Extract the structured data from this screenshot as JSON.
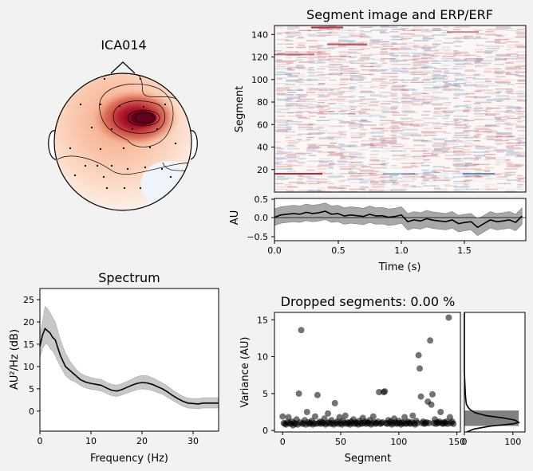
{
  "colors": {
    "background": "#f2f2f2",
    "hot": "#b2182b",
    "cold": "#2166ac",
    "line": "#000000",
    "band": "#a8a8a8"
  },
  "topomap": {
    "title": "ICA014"
  },
  "segment_image": {
    "title": "Segment image and ERP/ERF",
    "ylabel": "Segment",
    "yticks": [
      "20",
      "40",
      "60",
      "80",
      "100",
      "120",
      "140"
    ]
  },
  "erp": {
    "ylabel": "AU",
    "xlabel": "Time (s)",
    "yticks": [
      "0.5",
      "0.0",
      "−0.5"
    ],
    "xticks": [
      "0.0",
      "0.5",
      "1.0",
      "1.5"
    ]
  },
  "spectrum": {
    "title": "Spectrum",
    "ylabel": "AU²/Hz (dB)",
    "xlabel": "Frequency (Hz)",
    "yticks": [
      "25",
      "20",
      "15",
      "10",
      "5",
      "0"
    ],
    "xticks": [
      "0",
      "10",
      "20",
      "30"
    ]
  },
  "dropped": {
    "title": "Dropped segments: 0.00 %",
    "ylabel": "Variance (AU)",
    "xlabel": "Segment",
    "yticks": [
      "15",
      "10",
      "5",
      "0"
    ],
    "xticks": [
      "0",
      "50",
      "100",
      "150"
    ],
    "hist_xticks": [
      "0",
      "100"
    ]
  },
  "chart_data": [
    {
      "type": "heatmap",
      "title": "Segment image and ERP/ERF",
      "ylabel": "Segment",
      "xlim": [
        0,
        1.98
      ],
      "ylim": [
        0,
        148
      ],
      "colormap": "RdBu_r"
    },
    {
      "type": "line",
      "xlabel": "Time (s)",
      "ylabel": "AU",
      "xlim": [
        0,
        1.98
      ],
      "ylim": [
        -0.6,
        0.5
      ],
      "x": [
        0,
        0.05,
        0.1,
        0.15,
        0.2,
        0.25,
        0.3,
        0.35,
        0.4,
        0.45,
        0.5,
        0.55,
        0.6,
        0.65,
        0.7,
        0.75,
        0.8,
        0.85,
        0.9,
        0.95,
        1.0,
        1.05,
        1.1,
        1.15,
        1.2,
        1.25,
        1.3,
        1.35,
        1.4,
        1.45,
        1.5,
        1.55,
        1.6,
        1.65,
        1.7,
        1.75,
        1.8,
        1.85,
        1.9,
        1.95
      ],
      "series": [
        {
          "values": [
            0.02,
            0.08,
            0.1,
            0.12,
            0.1,
            0.15,
            0.12,
            0.14,
            0.18,
            0.1,
            0.12,
            0.05,
            0.08,
            0.06,
            0.04,
            0.1,
            0.05,
            0.06,
            0.02,
            0.04,
            0.08,
            -0.1,
            -0.05,
            -0.08,
            -0.02,
            -0.06,
            -0.08,
            -0.1,
            -0.05,
            -0.15,
            -0.12,
            -0.1,
            -0.25,
            -0.15,
            -0.05,
            -0.1,
            -0.08,
            -0.05,
            -0.12,
            0.05
          ],
          "lower": [
            -0.2,
            -0.14,
            -0.12,
            -0.1,
            -0.12,
            -0.07,
            -0.1,
            -0.08,
            -0.04,
            -0.12,
            -0.1,
            -0.17,
            -0.14,
            -0.16,
            -0.18,
            -0.12,
            -0.17,
            -0.16,
            -0.2,
            -0.18,
            -0.14,
            -0.32,
            -0.27,
            -0.3,
            -0.24,
            -0.28,
            -0.3,
            -0.32,
            -0.27,
            -0.37,
            -0.34,
            -0.32,
            -0.47,
            -0.37,
            -0.27,
            -0.32,
            -0.3,
            -0.27,
            -0.34,
            -0.17
          ],
          "upper": [
            0.24,
            0.3,
            0.32,
            0.34,
            0.32,
            0.37,
            0.34,
            0.36,
            0.4,
            0.32,
            0.34,
            0.27,
            0.3,
            0.28,
            0.26,
            0.32,
            0.27,
            0.28,
            0.24,
            0.26,
            0.3,
            0.12,
            0.17,
            0.14,
            0.2,
            0.16,
            0.14,
            0.12,
            0.17,
            0.07,
            0.1,
            0.12,
            -0.03,
            0.07,
            0.17,
            0.12,
            0.14,
            0.17,
            0.1,
            0.27
          ]
        }
      ]
    },
    {
      "type": "line",
      "title": "Spectrum",
      "xlabel": "Frequency (Hz)",
      "ylabel": "AU²/Hz (dB)",
      "xlim": [
        0,
        35
      ],
      "ylim": [
        -4.5,
        27.5
      ],
      "x": [
        0,
        0.5,
        1,
        1.5,
        2,
        2.5,
        3,
        4,
        5,
        6,
        7,
        8,
        9,
        10,
        11,
        12,
        13,
        14,
        15,
        16,
        17,
        18,
        19,
        20,
        21,
        22,
        23,
        24,
        25,
        26,
        27,
        28,
        29,
        30,
        31,
        32,
        33,
        34,
        35
      ],
      "series": [
        {
          "values": [
            14.5,
            17,
            18.5,
            18,
            17.5,
            16.5,
            16,
            12.5,
            10,
            9,
            8,
            7,
            6.5,
            6.2,
            6,
            5.8,
            5.2,
            4.7,
            4.5,
            4.8,
            5.3,
            5.8,
            6.2,
            6.4,
            6.3,
            6,
            5.5,
            5,
            4.3,
            3.5,
            2.8,
            2.2,
            1.8,
            1.7,
            1.6,
            1.8,
            1.8,
            1.8,
            1.8
          ],
          "lower": [
            12,
            14,
            15,
            15,
            14,
            13.5,
            12.5,
            10,
            8,
            7,
            6.5,
            5.7,
            5.2,
            4.9,
            4.7,
            4.5,
            4,
            3.5,
            3.3,
            3.6,
            4,
            4.4,
            4.8,
            5,
            4.9,
            4.6,
            4.2,
            3.8,
            3.1,
            2.4,
            1.7,
            1.1,
            0.7,
            0.6,
            0.5,
            0.7,
            0.7,
            0.7,
            0.7
          ],
          "upper": [
            17,
            20,
            23.5,
            23,
            22,
            21,
            20,
            16,
            13,
            11,
            9.5,
            8.4,
            7.9,
            7.5,
            7.3,
            7.1,
            6.5,
            6,
            5.8,
            6.1,
            6.6,
            7.2,
            7.7,
            8,
            7.9,
            7.5,
            6.9,
            6.3,
            5.6,
            4.7,
            4,
            3.3,
            2.9,
            2.8,
            2.8,
            3,
            3,
            3,
            3
          ]
        }
      ]
    },
    {
      "type": "scatter",
      "title": "Dropped segments: 0.00 %",
      "xlabel": "Segment",
      "ylabel": "Variance (AU)",
      "xlim": [
        -7,
        153
      ],
      "ylim": [
        -0.2,
        16
      ],
      "points": [
        [
          0,
          1.9
        ],
        [
          1,
          1.0
        ],
        [
          2,
          0.9
        ],
        [
          3,
          0.8
        ],
        [
          4,
          1.1
        ],
        [
          5,
          1.8
        ],
        [
          6,
          1.0
        ],
        [
          7,
          0.9
        ],
        [
          8,
          1.2
        ],
        [
          9,
          0.7
        ],
        [
          10,
          1.0
        ],
        [
          11,
          0.9
        ],
        [
          12,
          1.5
        ],
        [
          13,
          0.8
        ],
        [
          14,
          5.0
        ],
        [
          15,
          1.1
        ],
        [
          16,
          13.6
        ],
        [
          17,
          0.9
        ],
        [
          18,
          1.0
        ],
        [
          19,
          1.4
        ],
        [
          20,
          0.8
        ],
        [
          21,
          2.5
        ],
        [
          22,
          1.1
        ],
        [
          23,
          0.9
        ],
        [
          24,
          1.0
        ],
        [
          25,
          1.3
        ],
        [
          26,
          0.8
        ],
        [
          27,
          1.0
        ],
        [
          28,
          1.9
        ],
        [
          29,
          0.9
        ],
        [
          30,
          4.8
        ],
        [
          31,
          1.0
        ],
        [
          32,
          1.2
        ],
        [
          33,
          0.9
        ],
        [
          34,
          1.1
        ],
        [
          35,
          1.0
        ],
        [
          36,
          1.6
        ],
        [
          37,
          0.8
        ],
        [
          38,
          1.0
        ],
        [
          39,
          2.3
        ],
        [
          40,
          1.1
        ],
        [
          41,
          0.9
        ],
        [
          42,
          1.4
        ],
        [
          43,
          1.0
        ],
        [
          44,
          0.8
        ],
        [
          45,
          3.7
        ],
        [
          46,
          1.0
        ],
        [
          47,
          1.2
        ],
        [
          48,
          0.9
        ],
        [
          49,
          1.8
        ],
        [
          50,
          1.0
        ],
        [
          51,
          0.8
        ],
        [
          52,
          1.3
        ],
        [
          53,
          1.0
        ],
        [
          54,
          2.0
        ],
        [
          55,
          0.9
        ],
        [
          56,
          1.1
        ],
        [
          57,
          1.0
        ],
        [
          58,
          0.8
        ],
        [
          59,
          1.2
        ],
        [
          60,
          1.0
        ],
        [
          61,
          1.5
        ],
        [
          62,
          0.9
        ],
        [
          63,
          1.1
        ],
        [
          64,
          1.0
        ],
        [
          65,
          0.8
        ],
        [
          66,
          1.3
        ],
        [
          67,
          1.0
        ],
        [
          68,
          0.9
        ],
        [
          69,
          1.7
        ],
        [
          70,
          1.0
        ],
        [
          71,
          1.2
        ],
        [
          72,
          0.9
        ],
        [
          73,
          1.1
        ],
        [
          74,
          1.0
        ],
        [
          75,
          1.4
        ],
        [
          76,
          0.8
        ],
        [
          77,
          1.0
        ],
        [
          78,
          1.9
        ],
        [
          79,
          1.1
        ],
        [
          80,
          0.9
        ],
        [
          81,
          1.0
        ],
        [
          82,
          1.2
        ],
        [
          83,
          5.2
        ],
        [
          84,
          0.9
        ],
        [
          85,
          1.0
        ],
        [
          86,
          1.1
        ],
        [
          87,
          5.2
        ],
        [
          88,
          5.3
        ],
        [
          89,
          1.0
        ],
        [
          90,
          0.9
        ],
        [
          91,
          1.4
        ],
        [
          92,
          1.0
        ],
        [
          93,
          1.2
        ],
        [
          94,
          0.8
        ],
        [
          95,
          1.0
        ],
        [
          96,
          1.6
        ],
        [
          97,
          1.1
        ],
        [
          98,
          0.9
        ],
        [
          99,
          1.0
        ],
        [
          100,
          1.3
        ],
        [
          101,
          1.0
        ],
        [
          102,
          0.8
        ],
        [
          103,
          1.1
        ],
        [
          104,
          1.0
        ],
        [
          105,
          1.8
        ],
        [
          106,
          0.9
        ],
        [
          107,
          1.0
        ],
        [
          108,
          1.2
        ],
        [
          109,
          1.0
        ],
        [
          110,
          0.9
        ],
        [
          111,
          1.1
        ],
        [
          112,
          2.0
        ],
        [
          113,
          1.0
        ],
        [
          114,
          0.8
        ],
        [
          115,
          1.3
        ],
        [
          116,
          1.0
        ],
        [
          117,
          10.2
        ],
        [
          118,
          8.4
        ],
        [
          119,
          4.6
        ],
        [
          120,
          1.0
        ],
        [
          121,
          1.2
        ],
        [
          122,
          0.9
        ],
        [
          123,
          1.0
        ],
        [
          124,
          1.1
        ],
        [
          125,
          3.9
        ],
        [
          126,
          1.0
        ],
        [
          127,
          12.2
        ],
        [
          128,
          3.5
        ],
        [
          129,
          4.9
        ],
        [
          130,
          1.0
        ],
        [
          131,
          1.5
        ],
        [
          132,
          0.9
        ],
        [
          133,
          1.1
        ],
        [
          134,
          1.0
        ],
        [
          135,
          1.2
        ],
        [
          136,
          2.5
        ],
        [
          137,
          1.0
        ],
        [
          138,
          0.9
        ],
        [
          139,
          1.1
        ],
        [
          140,
          1.0
        ],
        [
          141,
          1.2
        ],
        [
          142,
          0.9
        ],
        [
          143,
          15.3
        ],
        [
          144,
          1.8
        ],
        [
          145,
          1.0
        ],
        [
          146,
          1.2
        ],
        [
          147,
          0.9
        ]
      ]
    },
    {
      "type": "area",
      "xlim": [
        0,
        125
      ],
      "ylim": [
        -0.2,
        16
      ],
      "y": [
        -0.2,
        0.2,
        0.6,
        0.9,
        1.1,
        1.4,
        1.7,
        2.0,
        2.4,
        2.8,
        3.2,
        3.6,
        4.2,
        5.0,
        6.5,
        8.0,
        10.0,
        12.0,
        14.0,
        16.0
      ],
      "density_values": [
        5,
        20,
        55,
        100,
        112,
        105,
        80,
        45,
        22,
        12,
        7,
        4,
        3,
        2,
        1,
        0,
        0,
        0,
        0,
        0
      ],
      "histogram": {
        "y_range": [
          0.6,
          2.7
        ],
        "count": 112
      }
    }
  ]
}
